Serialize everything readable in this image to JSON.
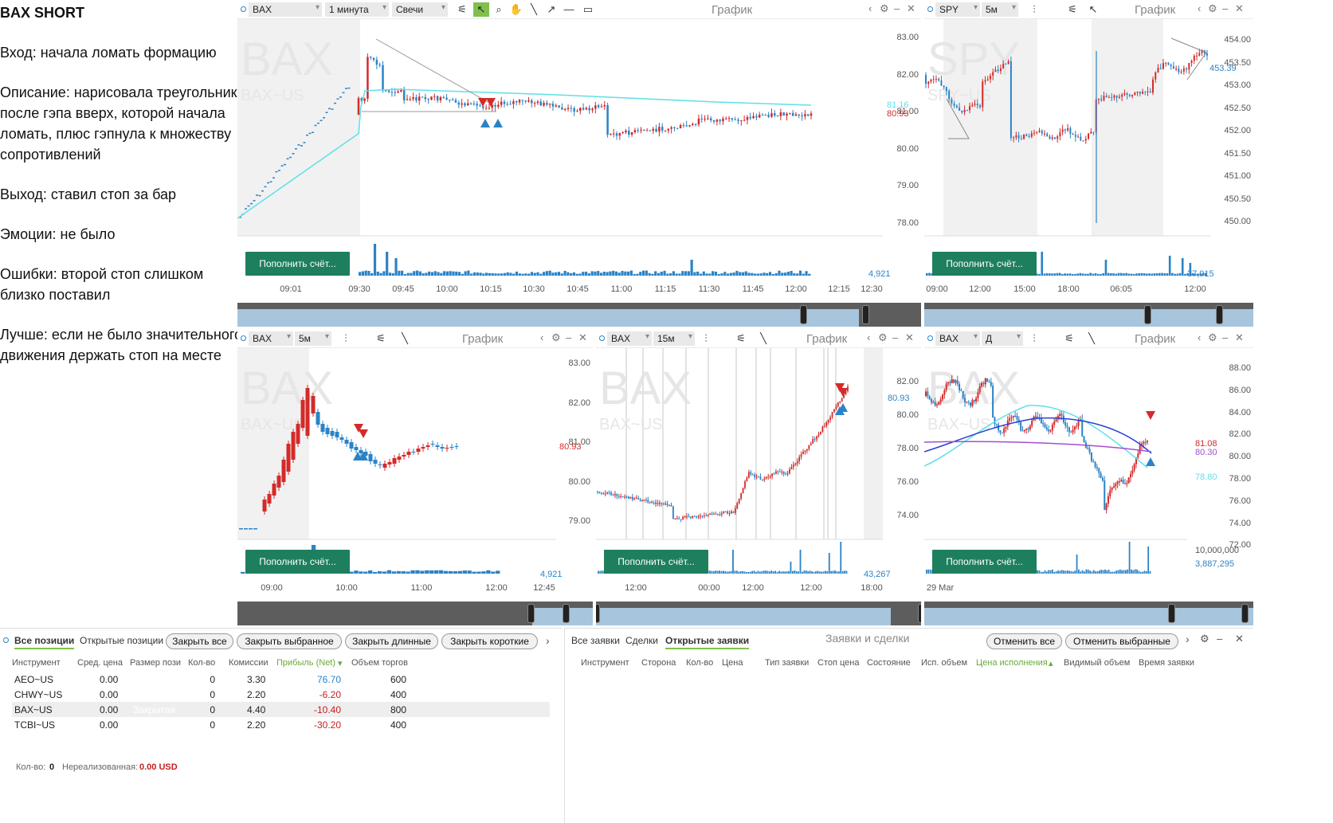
{
  "notes": {
    "title": "BAX SHORT",
    "lines": [
      "Вход: начала ломать формацию",
      "Описание: нарисовала треугольник после гэпа вверх, которой начала ломать, плюс гэпнула к множеству сопротивлений",
      "Выход: ставил стоп за бар",
      "Эмоции: не было",
      "Ошибки: второй стоп слишком близко поставил",
      "Лучше: если не было значительного движения держать стоп на месте"
    ]
  },
  "fund_label": "Пополнить счёт...",
  "panel_title": "График",
  "panels": {
    "p1": {
      "symbol": "BAX",
      "interval": "1 минута",
      "style": "Свечи",
      "wm1": "BAX",
      "wm2": "BAX~US",
      "yticks": [
        "83.00",
        "82.00",
        "81.00",
        "80.00",
        "79.00",
        "78.00"
      ],
      "xticks": [
        "09:01",
        "09:30",
        "09:45",
        "10:00",
        "10:15",
        "10:30",
        "10:45",
        "11:00",
        "11:15",
        "11:30",
        "11:45",
        "12:00",
        "12:15",
        "12:30"
      ],
      "price_cyan": "81.16",
      "price_red": "80.93",
      "vol": "4,921"
    },
    "p2": {
      "symbol": "SPY",
      "interval": "5м",
      "wm1": "SPY",
      "wm2": "SPY~US",
      "yticks": [
        "454.00",
        "453.50",
        "453.00",
        "452.50",
        "452.00",
        "451.50",
        "451.00",
        "450.50",
        "450.00"
      ],
      "xticks": [
        "09:00",
        "12:00",
        "15:00",
        "18:00",
        "06:05",
        "12:00"
      ],
      "price_tag": "453.39",
      "vol": "37,915"
    },
    "p3": {
      "symbol": "BAX",
      "interval": "5м",
      "wm1": "BAX",
      "wm2": "BAX~US",
      "yticks": [
        "83.00",
        "82.00",
        "81.00",
        "80.00",
        "79.00"
      ],
      "xticks": [
        "09:00",
        "10:00",
        "11:00",
        "12:00",
        "12:45"
      ],
      "price_red": "80.93",
      "vol": "4,921"
    },
    "p4": {
      "symbol": "BAX",
      "interval": "15м",
      "wm1": "BAX",
      "wm2": "BAX~US",
      "yticks": [
        "82.00",
        "80.00",
        "78.00",
        "76.00",
        "74.00"
      ],
      "xticks": [
        "12:00",
        "00:00",
        "12:00",
        "12:00",
        "18:00"
      ],
      "price_tag": "80.93",
      "vol": "43,267"
    },
    "p5": {
      "symbol": "BAX",
      "interval": "Д",
      "wm1": "BAX",
      "wm2": "BAX~US",
      "yticks": [
        "88.00",
        "86.00",
        "84.00",
        "82.00",
        "80.00",
        "78.00",
        "76.00",
        "74.00",
        "72.00"
      ],
      "xticks": [
        "29 Mar"
      ],
      "tag_red": "81.08",
      "tag_purple": "80.30",
      "tag_cyan": "78.80",
      "vol_top": "10,000,000",
      "vol": "3,887,295"
    }
  },
  "positions": {
    "tabs": [
      "Все позиции",
      "Открытые позиции"
    ],
    "buttons": [
      "Закрыть все",
      "Закрыть выбранное",
      "Закрыть длинные",
      "Закрыть короткие"
    ],
    "headers": [
      "Инструмент",
      "Сред. цена",
      "Размер пози",
      "Кол-во",
      "Комиссии",
      "Прибыль (Net)",
      "Объем торгов"
    ],
    "rows": [
      {
        "sym": "AEO~US",
        "avg": "0.00",
        "size": "",
        "qty": "0",
        "comm": "3.30",
        "pnl": "76.70",
        "vol": "600"
      },
      {
        "sym": "CHWY~US",
        "avg": "0.00",
        "size": "",
        "qty": "0",
        "comm": "2.20",
        "pnl": "-6.20",
        "vol": "400"
      },
      {
        "sym": "BAX~US",
        "avg": "0.00",
        "size": "Закрытая",
        "qty": "0",
        "comm": "4.40",
        "pnl": "-10.40",
        "vol": "800"
      },
      {
        "sym": "TCBI~US",
        "avg": "0.00",
        "size": "",
        "qty": "0",
        "comm": "2.20",
        "pnl": "-30.20",
        "vol": "400"
      }
    ],
    "footer_qty_label": "Кол-во:",
    "footer_qty": "0",
    "footer_unreal_label": "Нереализованная:",
    "footer_unreal": "0.00 USD"
  },
  "orders": {
    "tabs": [
      "Все заявки",
      "Сделки",
      "Открытые заявки"
    ],
    "title": "Заявки и сделки",
    "buttons": [
      "Отменить все",
      "Отменить выбранные"
    ],
    "headers": [
      "Инструмент",
      "Сторона",
      "Кол-во",
      "Цена",
      "Тип заявки",
      "Стоп цена",
      "Состояние",
      "Исп. объем",
      "Цена исполнения",
      "Видимый объем",
      "Время заявки"
    ]
  },
  "colors": {
    "up": "#2a83c7",
    "down": "#d42a2a",
    "ma": "#5ee0e8",
    "accent": "#82c04e",
    "fund": "#1e7f5f"
  }
}
